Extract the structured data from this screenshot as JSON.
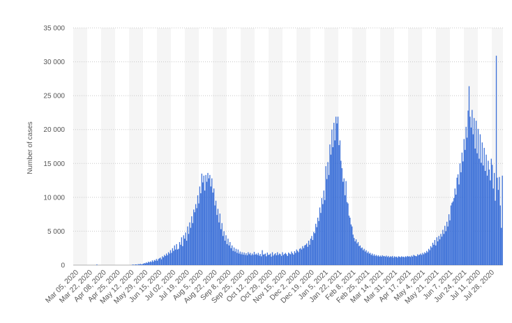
{
  "chart_data": {
    "type": "bar",
    "ylabel": "Number of cases",
    "ylim": [
      0,
      35000
    ],
    "yticks": [
      0,
      5000,
      10000,
      15000,
      20000,
      25000,
      30000,
      35000
    ],
    "ytick_labels": [
      "0",
      "5 000",
      "10 000",
      "15 000",
      "20 000",
      "25 000",
      "30 000",
      "35 000"
    ],
    "xtick_labels": [
      "Mar 05, 2020",
      "Mar 22, 2020",
      "Apr 08, 2020",
      "Apr 25, 2020",
      "May 12, 2020",
      "May 29, 2020",
      "Jun 15, 2020",
      "Jul 02, 2020",
      "Jul 19, 2020",
      "Aug 5, 2020",
      "Aug 22, 2020",
      "Sep 8, 2020",
      "Sep 25, 2020",
      "Oct 12, 2020",
      "Oct 29, 2020",
      "Nov 15, 2020",
      "Dec 2, 2020",
      "Dec 19, 2020",
      "Jan 5, 2021",
      "Jan 22, 2021",
      "Feb 8, 2021",
      "Feb 25, 2021",
      "Mar 14, 2021",
      "Mar 31, 2021",
      "Apr 17, 2021",
      "May 4, 2021",
      "May 21, 2021",
      "Jun 7, 2021",
      "Jun 24, 2021",
      "Jul 11, 2020",
      "Jul 28, 2020"
    ],
    "grid": true,
    "bar_color": "#3a6fd8",
    "values": [
      0,
      0,
      0,
      0,
      0,
      0,
      0,
      0,
      0,
      0,
      0,
      0,
      0,
      0,
      0,
      0,
      0,
      0,
      0,
      0,
      0,
      0,
      0,
      100,
      0,
      0,
      0,
      0,
      0,
      0,
      0,
      0,
      0,
      0,
      0,
      0,
      0,
      0,
      0,
      0,
      0,
      0,
      0,
      0,
      0,
      0,
      0,
      0,
      0,
      0,
      0,
      0,
      0,
      0,
      0,
      0,
      0,
      0,
      50,
      100,
      0,
      100,
      100,
      50,
      150,
      100,
      200,
      100,
      150,
      200,
      300,
      250,
      400,
      300,
      500,
      400,
      550,
      450,
      700,
      500,
      750,
      650,
      900,
      650,
      900,
      1000,
      1100,
      850,
      1300,
      1150,
      1500,
      1350,
      1700,
      1450,
      1900,
      1700,
      2200,
      1800,
      2500,
      2100,
      2900,
      2300,
      3100,
      2300,
      2400,
      3400,
      3000,
      4100,
      2800,
      4400,
      3900,
      4800,
      3600,
      5700,
      4600,
      6300,
      5500,
      7200,
      6200,
      8200,
      7800,
      9000,
      8400,
      10300,
      9100,
      11600,
      10600,
      13500,
      12200,
      13200,
      11000,
      13300,
      12300,
      13600,
      12800,
      13300,
      11600,
      12800,
      10700,
      11300,
      8800,
      9500,
      7400,
      8300,
      6300,
      7600,
      5300,
      6200,
      4300,
      5000,
      3600,
      4400,
      3100,
      3900,
      2900,
      3400,
      2500,
      2900,
      2100,
      2600,
      2000,
      2400,
      1800,
      2300,
      1700,
      2000,
      1600,
      1900,
      1550,
      1850,
      1500,
      1750,
      1450,
      1900,
      1600,
      1800,
      1450,
      1700,
      1500,
      1950,
      1550,
      1700,
      1500,
      1800,
      1400,
      1650,
      1300,
      2200,
      1550,
      1600,
      1700,
      1300,
      1850,
      1500,
      1550,
      1700,
      1250,
      1900,
      1400,
      1600,
      1750,
      1450,
      1900,
      1500,
      1700,
      1600,
      1350,
      1900,
      1500,
      1650,
      1800,
      1600,
      1350,
      1850,
      1700,
      1600,
      2000,
      1750,
      1550,
      2050,
      1800,
      2300,
      2100,
      1900,
      2400,
      2500,
      2300,
      2800,
      2500,
      2900,
      3000,
      3200,
      2700,
      3600,
      3000,
      3900,
      4300,
      3700,
      4900,
      4700,
      6100,
      5600,
      7000,
      6500,
      8500,
      7700,
      9900,
      9000,
      11000,
      9600,
      14600,
      12700,
      15200,
      13300,
      17800,
      16300,
      20000,
      17400,
      21000,
      18400,
      21900,
      20900,
      21900,
      17700,
      18400,
      15400,
      14300,
      12300,
      12800,
      10300,
      12400,
      9300,
      9100,
      7300,
      7000,
      6000,
      5700,
      4500,
      4000,
      3500,
      3800,
      3200,
      3400,
      2800,
      2900,
      2500,
      2600,
      2200,
      2400,
      2000,
      2200,
      1800,
      2000,
      1700,
      1800,
      1500,
      1700,
      1400,
      1600,
      1350,
      1500,
      1300,
      1450,
      1250,
      1400,
      1250,
      1450,
      1300,
      1350,
      1250,
      1400,
      1200,
      1350,
      1150,
      1300,
      1200,
      1350,
      1100,
      1300,
      1200,
      1250,
      1100,
      1300,
      1250,
      1150,
      1300,
      1200,
      1250,
      1150,
      1300,
      1200,
      1350,
      1250,
      1300,
      1200,
      1400,
      1250,
      1500,
      1400,
      1350,
      1300,
      1600,
      1450,
      1550,
      1700,
      1500,
      1800,
      1600,
      1900,
      1750,
      2100,
      1900,
      2400,
      2200,
      2800,
      2600,
      3300,
      3000,
      3700,
      2900,
      4100,
      3500,
      4300,
      3800,
      4600,
      4200,
      5200,
      4600,
      5800,
      5000,
      6400,
      5700,
      7500,
      6600,
      8800,
      9200,
      9400,
      9900,
      11300,
      10400,
      12900,
      13400,
      11900,
      15000,
      13700,
      16600,
      15300,
      18600,
      17000,
      20400,
      18800,
      22800,
      26400,
      21900,
      20300,
      22900,
      19300,
      21700,
      17200,
      21300,
      16500,
      20100,
      15700,
      19300,
      15100,
      18100,
      14700,
      17300,
      13900,
      16300,
      13200,
      15400,
      14100,
      12500,
      15700,
      14800,
      11300,
      13600,
      9500,
      30900,
      12900,
      11100,
      13000,
      8800,
      5500,
      13200
    ]
  }
}
